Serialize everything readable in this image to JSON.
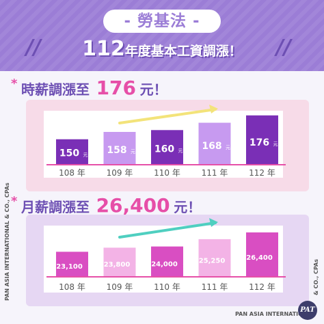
{
  "header": {
    "pill": "- 勞基法 -",
    "headline_num": "112",
    "headline_text": "年度基本工資調漲！",
    "slash_left": "//",
    "slash_right": "//"
  },
  "colors": {
    "header_bg": "#9b7dd6",
    "accent_pink": "#e64fa8",
    "accent_purple": "#6d4fb3",
    "panel1_bg": "#f7dbe8",
    "panel2_bg": "#e6d7f3",
    "arrow1": "#f3e37a",
    "arrow2": "#4fcfc0"
  },
  "sections": [
    {
      "star": "*",
      "label": "時薪調漲至",
      "amount": "176",
      "unit": "元！"
    },
    {
      "star": "*",
      "label": "月薪調漲至",
      "amount": "26,400",
      "unit": "元！"
    }
  ],
  "side": {
    "left": "PAN ASIA INTERNATIONAL & CO., CPAs",
    "right": "& CO., CPAs",
    "footer": "PAN ASIA INTERNATIONAL",
    "logo": "PAT"
  },
  "chart_data": [
    {
      "type": "bar",
      "categories": [
        "108 年",
        "109 年",
        "110 年",
        "111 年",
        "112 年"
      ],
      "values": [
        150,
        158,
        160,
        168,
        176
      ],
      "labels": [
        "150",
        "158",
        "160",
        "168",
        "176"
      ],
      "unit_label": "元",
      "ylim": [
        0,
        190
      ],
      "colors": [
        "#7a2fb6",
        "#c79af0",
        "#7a2fb6",
        "#c79af0",
        "#7a2fb6"
      ],
      "grid": false
    },
    {
      "type": "bar",
      "categories": [
        "108 年",
        "109 年",
        "110 年",
        "111 年",
        "112 年"
      ],
      "values": [
        23100,
        23800,
        24000,
        25250,
        26400
      ],
      "labels": [
        "23,100",
        "23,800",
        "24,000",
        "25,250",
        "26,400"
      ],
      "unit_label": "元",
      "ylim": [
        0,
        28500
      ],
      "colors": [
        "#d94ec2",
        "#f3b3e6",
        "#d94ec2",
        "#f3b3e6",
        "#d94ec2"
      ],
      "grid": false
    }
  ]
}
